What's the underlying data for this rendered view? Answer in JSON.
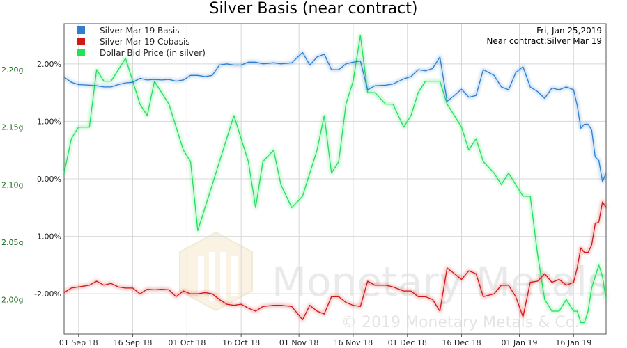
{
  "chart_data": {
    "type": "line",
    "title": "Silver Basis (near contract)",
    "x_tick_labels": [
      "01 Sep 18",
      "16 Sep 18",
      "01 Oct 18",
      "16 Oct 18",
      "01 Nov 18",
      "16 Nov 18",
      "01 Dec 18",
      "16 Dec 18",
      "01 Jan 19",
      "16 Jan 19"
    ],
    "x_range": [
      "2018-08-28",
      "2019-01-25"
    ],
    "y_left": {
      "ticks": [
        2.0,
        1.0,
        0.0,
        -1.0,
        -2.0
      ],
      "tick_labels": [
        "2.00%",
        "1.00%",
        "0.00%",
        "-1.00%",
        "-2.00%"
      ],
      "range": [
        -2.7,
        2.7
      ]
    },
    "y_right_ticks": {
      "ticks": [
        2.2,
        2.15,
        2.1,
        2.05,
        2.0
      ],
      "tick_labels": [
        "2.20g",
        "2.15g",
        "2.10g",
        "2.05g",
        "2.00g"
      ],
      "range": [
        1.97,
        2.24
      ]
    },
    "legend_placement": "top-left",
    "grid": true,
    "annotations": {
      "date": "Fri, Jan 25,2019",
      "contract": "Near contract:Silver Mar 19"
    },
    "watermark": {
      "brand": "Monetary Metals",
      "copyright": "© 2019 Monetary Metals & Co."
    },
    "series": [
      {
        "name": "Silver Mar 19 Basis",
        "axis": "left",
        "color": "#2f7fd0",
        "points": [
          [
            "2018-08-28",
            1.77
          ],
          [
            "2018-08-30",
            1.68
          ],
          [
            "2018-09-01",
            1.64
          ],
          [
            "2018-09-04",
            1.63
          ],
          [
            "2018-09-06",
            1.62
          ],
          [
            "2018-09-08",
            1.6
          ],
          [
            "2018-09-10",
            1.6
          ],
          [
            "2018-09-12",
            1.64
          ],
          [
            "2018-09-14",
            1.67
          ],
          [
            "2018-09-16",
            1.68
          ],
          [
            "2018-09-18",
            1.75
          ],
          [
            "2018-09-20",
            1.72
          ],
          [
            "2018-09-22",
            1.73
          ],
          [
            "2018-09-24",
            1.72
          ],
          [
            "2018-09-26",
            1.73
          ],
          [
            "2018-09-28",
            1.7
          ],
          [
            "2018-09-30",
            1.72
          ],
          [
            "2018-10-02",
            1.8
          ],
          [
            "2018-10-04",
            1.8
          ],
          [
            "2018-10-06",
            1.78
          ],
          [
            "2018-10-08",
            1.8
          ],
          [
            "2018-10-10",
            1.98
          ],
          [
            "2018-10-12",
            2.0
          ],
          [
            "2018-10-14",
            1.98
          ],
          [
            "2018-10-16",
            1.98
          ],
          [
            "2018-10-18",
            2.03
          ],
          [
            "2018-10-20",
            2.03
          ],
          [
            "2018-10-22",
            2.0
          ],
          [
            "2018-10-25",
            2.02
          ],
          [
            "2018-10-27",
            2.0
          ],
          [
            "2018-10-30",
            2.02
          ],
          [
            "2018-11-02",
            2.2
          ],
          [
            "2018-11-04",
            1.98
          ],
          [
            "2018-11-06",
            2.12
          ],
          [
            "2018-11-08",
            2.17
          ],
          [
            "2018-11-10",
            1.9
          ],
          [
            "2018-11-12",
            1.9
          ],
          [
            "2018-11-14",
            2.0
          ],
          [
            "2018-11-16",
            2.03
          ],
          [
            "2018-11-18",
            2.05
          ],
          [
            "2018-11-20",
            1.55
          ],
          [
            "2018-11-22",
            1.62
          ],
          [
            "2018-11-25",
            1.63
          ],
          [
            "2018-11-27",
            1.65
          ],
          [
            "2018-11-30",
            1.74
          ],
          [
            "2018-12-02",
            1.78
          ],
          [
            "2018-12-04",
            1.9
          ],
          [
            "2018-12-06",
            1.88
          ],
          [
            "2018-12-08",
            1.92
          ],
          [
            "2018-12-10",
            2.12
          ],
          [
            "2018-12-12",
            1.35
          ],
          [
            "2018-12-14",
            1.45
          ],
          [
            "2018-12-16",
            1.56
          ],
          [
            "2018-12-18",
            1.42
          ],
          [
            "2018-12-20",
            1.45
          ],
          [
            "2018-12-22",
            1.9
          ],
          [
            "2018-12-25",
            1.8
          ],
          [
            "2018-12-27",
            1.6
          ],
          [
            "2018-12-29",
            1.55
          ],
          [
            "2018-12-31",
            1.85
          ],
          [
            "2019-01-02",
            1.95
          ],
          [
            "2019-01-04",
            1.6
          ],
          [
            "2019-01-06",
            1.52
          ],
          [
            "2019-01-08",
            1.4
          ],
          [
            "2019-01-10",
            1.58
          ],
          [
            "2019-01-12",
            1.55
          ],
          [
            "2019-01-14",
            1.6
          ],
          [
            "2019-01-16",
            1.55
          ],
          [
            "2019-01-17",
            1.28
          ],
          [
            "2019-01-18",
            0.88
          ],
          [
            "2019-01-19",
            0.95
          ],
          [
            "2019-01-20",
            0.95
          ],
          [
            "2019-01-21",
            0.85
          ],
          [
            "2019-01-22",
            0.38
          ],
          [
            "2019-01-23",
            0.32
          ],
          [
            "2019-01-24",
            -0.05
          ],
          [
            "2019-01-25",
            0.1
          ]
        ]
      },
      {
        "name": "Silver Mar 19 Cobasis",
        "axis": "left",
        "color": "#d01818",
        "points": [
          [
            "2018-08-28",
            -1.98
          ],
          [
            "2018-08-30",
            -1.9
          ],
          [
            "2018-09-01",
            -1.88
          ],
          [
            "2018-09-04",
            -1.85
          ],
          [
            "2018-09-06",
            -1.78
          ],
          [
            "2018-09-08",
            -1.85
          ],
          [
            "2018-09-10",
            -1.82
          ],
          [
            "2018-09-12",
            -1.88
          ],
          [
            "2018-09-14",
            -1.9
          ],
          [
            "2018-09-16",
            -1.9
          ],
          [
            "2018-09-18",
            -2.0
          ],
          [
            "2018-09-20",
            -1.92
          ],
          [
            "2018-09-22",
            -1.93
          ],
          [
            "2018-09-24",
            -1.92
          ],
          [
            "2018-09-26",
            -1.93
          ],
          [
            "2018-09-28",
            -2.05
          ],
          [
            "2018-09-30",
            -1.95
          ],
          [
            "2018-10-02",
            -2.0
          ],
          [
            "2018-10-04",
            -2.0
          ],
          [
            "2018-10-06",
            -1.98
          ],
          [
            "2018-10-08",
            -2.0
          ],
          [
            "2018-10-10",
            -2.1
          ],
          [
            "2018-10-12",
            -2.18
          ],
          [
            "2018-10-14",
            -2.2
          ],
          [
            "2018-10-16",
            -2.18
          ],
          [
            "2018-10-18",
            -2.25
          ],
          [
            "2018-10-20",
            -2.3
          ],
          [
            "2018-10-22",
            -2.22
          ],
          [
            "2018-10-25",
            -2.2
          ],
          [
            "2018-10-27",
            -2.2
          ],
          [
            "2018-10-30",
            -2.22
          ],
          [
            "2018-11-02",
            -2.45
          ],
          [
            "2018-11-04",
            -2.2
          ],
          [
            "2018-11-06",
            -2.3
          ],
          [
            "2018-11-08",
            -2.35
          ],
          [
            "2018-11-10",
            -2.05
          ],
          [
            "2018-11-12",
            -2.05
          ],
          [
            "2018-11-14",
            -2.15
          ],
          [
            "2018-11-16",
            -2.2
          ],
          [
            "2018-11-18",
            -2.22
          ],
          [
            "2018-11-20",
            -1.78
          ],
          [
            "2018-11-22",
            -1.85
          ],
          [
            "2018-11-25",
            -1.85
          ],
          [
            "2018-11-27",
            -1.88
          ],
          [
            "2018-11-30",
            -1.95
          ],
          [
            "2018-12-02",
            -1.95
          ],
          [
            "2018-12-04",
            -2.05
          ],
          [
            "2018-12-06",
            -2.05
          ],
          [
            "2018-12-08",
            -2.1
          ],
          [
            "2018-12-10",
            -2.3
          ],
          [
            "2018-12-12",
            -1.55
          ],
          [
            "2018-12-14",
            -1.65
          ],
          [
            "2018-12-16",
            -1.75
          ],
          [
            "2018-12-18",
            -1.6
          ],
          [
            "2018-12-20",
            -1.65
          ],
          [
            "2018-12-22",
            -2.05
          ],
          [
            "2018-12-25",
            -2.0
          ],
          [
            "2018-12-27",
            -1.85
          ],
          [
            "2018-12-29",
            -1.85
          ],
          [
            "2018-12-31",
            -2.05
          ],
          [
            "2019-01-02",
            -2.4
          ],
          [
            "2019-01-04",
            -1.8
          ],
          [
            "2019-01-06",
            -1.78
          ],
          [
            "2019-01-08",
            -1.65
          ],
          [
            "2019-01-10",
            -1.8
          ],
          [
            "2019-01-12",
            -1.75
          ],
          [
            "2019-01-14",
            -1.85
          ],
          [
            "2019-01-16",
            -1.8
          ],
          [
            "2019-01-17",
            -1.55
          ],
          [
            "2019-01-18",
            -1.2
          ],
          [
            "2019-01-19",
            -1.28
          ],
          [
            "2019-01-20",
            -1.28
          ],
          [
            "2019-01-21",
            -1.15
          ],
          [
            "2019-01-22",
            -0.78
          ],
          [
            "2019-01-23",
            -0.75
          ],
          [
            "2019-01-24",
            -0.4
          ],
          [
            "2019-01-25",
            -0.5
          ]
        ]
      },
      {
        "name": "Dollar Bid Price (in silver)",
        "axis": "right",
        "color": "#22e05a",
        "points": [
          [
            "2018-08-28",
            2.11
          ],
          [
            "2018-08-30",
            2.14
          ],
          [
            "2018-09-01",
            2.15
          ],
          [
            "2018-09-04",
            2.15
          ],
          [
            "2018-09-06",
            2.2
          ],
          [
            "2018-09-08",
            2.19
          ],
          [
            "2018-09-10",
            2.19
          ],
          [
            "2018-09-12",
            2.2
          ],
          [
            "2018-09-14",
            2.21
          ],
          [
            "2018-09-16",
            2.19
          ],
          [
            "2018-09-18",
            2.17
          ],
          [
            "2018-09-20",
            2.16
          ],
          [
            "2018-09-22",
            2.19
          ],
          [
            "2018-09-24",
            2.18
          ],
          [
            "2018-09-26",
            2.17
          ],
          [
            "2018-09-28",
            2.15
          ],
          [
            "2018-09-30",
            2.13
          ],
          [
            "2018-10-02",
            2.12
          ],
          [
            "2018-10-04",
            2.06
          ],
          [
            "2018-10-06",
            2.08
          ],
          [
            "2018-10-08",
            2.1
          ],
          [
            "2018-10-10",
            2.12
          ],
          [
            "2018-10-12",
            2.14
          ],
          [
            "2018-10-14",
            2.16
          ],
          [
            "2018-10-16",
            2.14
          ],
          [
            "2018-10-18",
            2.12
          ],
          [
            "2018-10-20",
            2.08
          ],
          [
            "2018-10-22",
            2.12
          ],
          [
            "2018-10-25",
            2.13
          ],
          [
            "2018-10-27",
            2.1
          ],
          [
            "2018-10-30",
            2.08
          ],
          [
            "2018-11-02",
            2.09
          ],
          [
            "2018-11-04",
            2.11
          ],
          [
            "2018-11-06",
            2.13
          ],
          [
            "2018-11-08",
            2.16
          ],
          [
            "2018-11-10",
            2.11
          ],
          [
            "2018-11-12",
            2.12
          ],
          [
            "2018-11-14",
            2.17
          ],
          [
            "2018-11-16",
            2.19
          ],
          [
            "2018-11-18",
            2.23
          ],
          [
            "2018-11-20",
            2.18
          ],
          [
            "2018-11-22",
            2.18
          ],
          [
            "2018-11-25",
            2.17
          ],
          [
            "2018-11-27",
            2.17
          ],
          [
            "2018-11-30",
            2.15
          ],
          [
            "2018-12-02",
            2.16
          ],
          [
            "2018-12-04",
            2.18
          ],
          [
            "2018-12-06",
            2.19
          ],
          [
            "2018-12-08",
            2.19
          ],
          [
            "2018-12-10",
            2.19
          ],
          [
            "2018-12-12",
            2.17
          ],
          [
            "2018-12-14",
            2.16
          ],
          [
            "2018-12-16",
            2.15
          ],
          [
            "2018-12-18",
            2.13
          ],
          [
            "2018-12-20",
            2.14
          ],
          [
            "2018-12-22",
            2.12
          ],
          [
            "2018-12-25",
            2.11
          ],
          [
            "2018-12-27",
            2.1
          ],
          [
            "2018-12-29",
            2.11
          ],
          [
            "2018-12-31",
            2.1
          ],
          [
            "2019-01-02",
            2.09
          ],
          [
            "2019-01-04",
            2.09
          ],
          [
            "2019-01-06",
            2.04
          ],
          [
            "2019-01-08",
            2.0
          ],
          [
            "2019-01-10",
            1.99
          ],
          [
            "2019-01-12",
            1.99
          ],
          [
            "2019-01-14",
            2.0
          ],
          [
            "2019-01-16",
            1.99
          ],
          [
            "2019-01-17",
            1.99
          ],
          [
            "2019-01-18",
            1.98
          ],
          [
            "2019-01-19",
            1.98
          ],
          [
            "2019-01-20",
            1.99
          ],
          [
            "2019-01-21",
            2.01
          ],
          [
            "2019-01-22",
            2.02
          ],
          [
            "2019-01-23",
            2.03
          ],
          [
            "2019-01-24",
            2.02
          ],
          [
            "2019-01-25",
            2.0
          ]
        ]
      }
    ]
  }
}
